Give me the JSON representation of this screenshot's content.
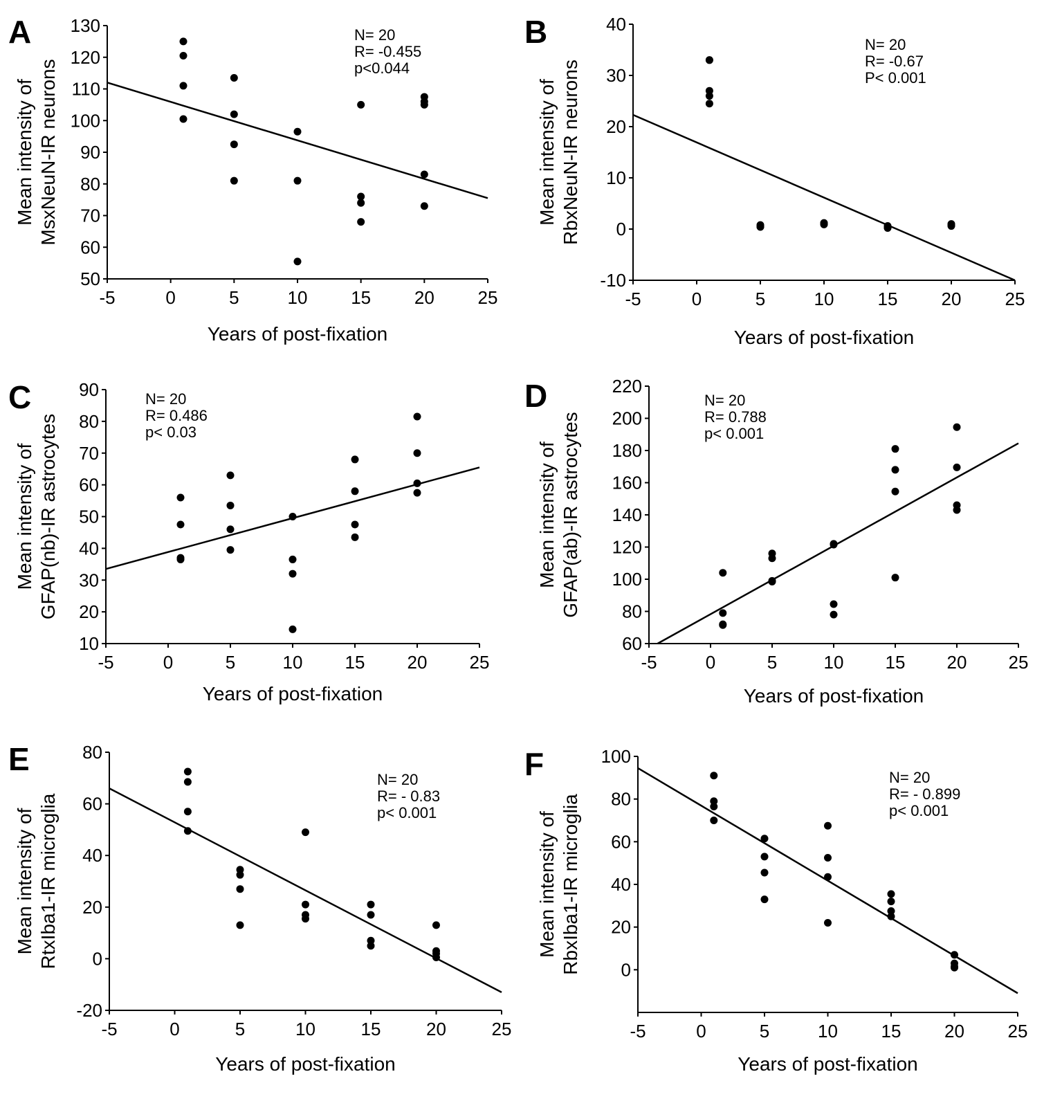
{
  "chart_data": [
    {
      "panel": "A",
      "type": "scatter",
      "xlabel": "Years of post-fixation",
      "ylabel": [
        "Mean intensity of",
        "MsxNeuN-IR neurons"
      ],
      "xlim": [
        -5,
        25
      ],
      "ylim": [
        50,
        130
      ],
      "xticks": [
        -5,
        0,
        5,
        10,
        15,
        20,
        25
      ],
      "yticks": [
        50,
        60,
        70,
        80,
        90,
        100,
        110,
        120,
        130
      ],
      "stats": [
        "N= 20",
        "R= -0.455",
        "p<0.044"
      ],
      "points": [
        [
          1,
          125
        ],
        [
          1,
          120.5
        ],
        [
          1,
          111
        ],
        [
          1,
          100.5
        ],
        [
          5,
          113.5
        ],
        [
          5,
          102
        ],
        [
          5,
          92.5
        ],
        [
          5,
          81
        ],
        [
          10,
          96.5
        ],
        [
          10,
          81
        ],
        [
          10,
          55.5
        ],
        [
          15,
          105
        ],
        [
          15,
          76
        ],
        [
          15,
          74
        ],
        [
          15,
          68
        ],
        [
          20,
          107.5
        ],
        [
          20,
          105
        ],
        [
          20,
          83
        ],
        [
          20,
          73
        ],
        [
          20,
          106
        ]
      ],
      "fit": [
        [
          -5,
          112
        ],
        [
          25,
          75.5
        ]
      ]
    },
    {
      "panel": "B",
      "type": "scatter",
      "xlabel": "Years of post-fixation",
      "ylabel": [
        "Mean intensity of",
        "RbxNeuN-IR neurons"
      ],
      "xlim": [
        -5,
        25
      ],
      "ylim": [
        -10,
        40
      ],
      "xticks": [
        -5,
        0,
        5,
        10,
        15,
        20,
        25
      ],
      "yticks": [
        -10,
        0,
        10,
        20,
        30,
        40
      ],
      "stats": [
        "N= 20",
        "R= -0.67",
        "P< 0.001"
      ],
      "points": [
        [
          1,
          33
        ],
        [
          1,
          27
        ],
        [
          1,
          26
        ],
        [
          1,
          24.5
        ],
        [
          1,
          33
        ],
        [
          5,
          0.8
        ],
        [
          5,
          0.4
        ],
        [
          5,
          0.6
        ],
        [
          5,
          0.5
        ],
        [
          10,
          1
        ],
        [
          10,
          1.2
        ],
        [
          10,
          0.9
        ],
        [
          10,
          1.1
        ],
        [
          15,
          0.4
        ],
        [
          15,
          0.2
        ],
        [
          15,
          0.6
        ],
        [
          15,
          0.3
        ],
        [
          20,
          1
        ],
        [
          20,
          0.6
        ],
        [
          20,
          0.8
        ]
      ],
      "fit": [
        [
          -5,
          22.3
        ],
        [
          25,
          -10
        ]
      ]
    },
    {
      "panel": "C",
      "type": "scatter",
      "xlabel": "Years of post-fixation",
      "ylabel": [
        "Mean intensity of",
        "GFAP(nb)-IR astrocytes"
      ],
      "xlim": [
        -5,
        25
      ],
      "ylim": [
        10,
        90
      ],
      "xticks": [
        -5,
        0,
        5,
        10,
        15,
        20,
        25
      ],
      "yticks": [
        10,
        20,
        30,
        40,
        50,
        60,
        70,
        80,
        90
      ],
      "stats": [
        "N= 20",
        "R= 0.486",
        "p< 0.03"
      ],
      "points": [
        [
          1,
          56
        ],
        [
          1,
          47.5
        ],
        [
          1,
          37
        ],
        [
          1,
          36.5
        ],
        [
          5,
          63
        ],
        [
          5,
          53.5
        ],
        [
          5,
          46
        ],
        [
          5,
          39.5
        ],
        [
          10,
          50
        ],
        [
          10,
          36.5
        ],
        [
          10,
          32
        ],
        [
          10,
          14.5
        ],
        [
          15,
          68
        ],
        [
          15,
          58
        ],
        [
          15,
          47.5
        ],
        [
          15,
          43.5
        ],
        [
          20,
          81.5
        ],
        [
          20,
          70
        ],
        [
          20,
          60.5
        ],
        [
          20,
          57.5
        ]
      ],
      "fit": [
        [
          -5,
          33.5
        ],
        [
          25,
          65.5
        ]
      ]
    },
    {
      "panel": "D",
      "type": "scatter",
      "xlabel": "Years of post-fixation",
      "ylabel": [
        "Mean intensity of",
        "GFAP(ab)-IR astrocytes"
      ],
      "xlim": [
        -5,
        25
      ],
      "ylim": [
        60,
        220
      ],
      "xticks": [
        -5,
        0,
        5,
        10,
        15,
        20,
        25
      ],
      "yticks": [
        60,
        80,
        100,
        120,
        140,
        160,
        180,
        200,
        220
      ],
      "stats": [
        "N= 20",
        "R= 0.788",
        "p< 0.001"
      ],
      "points": [
        [
          1,
          104
        ],
        [
          1,
          79
        ],
        [
          1,
          72
        ],
        [
          1,
          71.5
        ],
        [
          5,
          116
        ],
        [
          5,
          113
        ],
        [
          5,
          99
        ],
        [
          5,
          98.5
        ],
        [
          10,
          122
        ],
        [
          10,
          84.5
        ],
        [
          10,
          78
        ],
        [
          10,
          121.5
        ],
        [
          15,
          181
        ],
        [
          15,
          168
        ],
        [
          15,
          154.5
        ],
        [
          15,
          101
        ],
        [
          20,
          194.5
        ],
        [
          20,
          169.5
        ],
        [
          20,
          146
        ],
        [
          20,
          143
        ]
      ],
      "fit": [
        [
          -4.3,
          60
        ],
        [
          25,
          184.5
        ]
      ]
    },
    {
      "panel": "E",
      "type": "scatter",
      "xlabel": "Years of post-fixation",
      "ylabel": [
        "Mean intensity of",
        "RtxIba1-IR microglia"
      ],
      "xlim": [
        -5,
        25
      ],
      "ylim": [
        -20,
        80
      ],
      "xticks": [
        -5,
        0,
        5,
        10,
        15,
        20,
        25
      ],
      "yticks": [
        -20,
        0,
        20,
        40,
        60,
        80
      ],
      "stats": [
        "N= 20",
        "R= - 0.83",
        "p< 0.001"
      ],
      "points": [
        [
          1,
          72.5
        ],
        [
          1,
          68.5
        ],
        [
          1,
          57
        ],
        [
          1,
          49.5
        ],
        [
          5,
          34.5
        ],
        [
          5,
          32.5
        ],
        [
          5,
          27
        ],
        [
          5,
          13
        ],
        [
          10,
          49
        ],
        [
          10,
          21
        ],
        [
          10,
          17
        ],
        [
          10,
          15.5
        ],
        [
          15,
          21
        ],
        [
          15,
          17
        ],
        [
          15,
          7
        ],
        [
          15,
          5
        ],
        [
          20,
          13
        ],
        [
          20,
          3
        ],
        [
          20,
          2
        ],
        [
          20,
          0.5
        ]
      ],
      "fit": [
        [
          -5,
          66
        ],
        [
          25,
          -13
        ]
      ]
    },
    {
      "panel": "F",
      "type": "scatter",
      "xlabel": "Years of post-fixation",
      "ylabel": [
        "Mean intensity of",
        "RbxIba1-IR microglia"
      ],
      "xlim": [
        -5,
        25
      ],
      "ylim": [
        -20,
        100
      ],
      "xticks": [
        -5,
        0,
        5,
        10,
        15,
        20,
        25
      ],
      "yticks": [
        0,
        20,
        40,
        60,
        80,
        100
      ],
      "stats": [
        "N= 20",
        "R= - 0.899",
        "p< 0.001"
      ],
      "points": [
        [
          1,
          91
        ],
        [
          1,
          79
        ],
        [
          1,
          76.5
        ],
        [
          1,
          70
        ],
        [
          5,
          61.5
        ],
        [
          5,
          53
        ],
        [
          5,
          45.5
        ],
        [
          5,
          33
        ],
        [
          10,
          67.5
        ],
        [
          10,
          52.5
        ],
        [
          10,
          43.5
        ],
        [
          10,
          22
        ],
        [
          15,
          35.5
        ],
        [
          15,
          32
        ],
        [
          15,
          27.5
        ],
        [
          15,
          25
        ],
        [
          20,
          7
        ],
        [
          20,
          3
        ],
        [
          20,
          1.5
        ],
        [
          20,
          1
        ]
      ],
      "fit": [
        [
          -5,
          94.5
        ],
        [
          25,
          -11
        ]
      ]
    }
  ]
}
